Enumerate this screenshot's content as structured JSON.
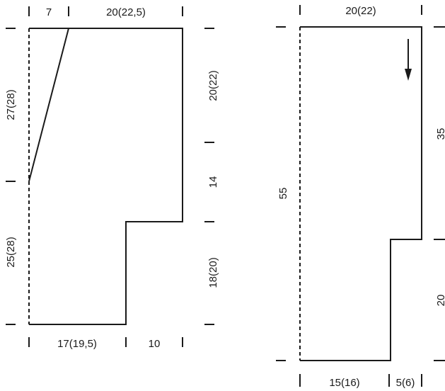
{
  "left_piece": {
    "top_left": "7",
    "top_right": "20(22,5)",
    "left_upper": "27(28)",
    "left_lower": "25(28)",
    "right_upper": "20(22)",
    "right_middle": "14",
    "right_lower": "18(20)",
    "bottom_left": "17(19,5)",
    "bottom_right": "10"
  },
  "right_piece": {
    "top": "20(22)",
    "left": "55",
    "right_upper": "35",
    "right_lower": "20",
    "bottom_left": "15(16)",
    "bottom_right": "5(6)"
  },
  "colors": {
    "line": "#1a1a1a",
    "background": "#ffffff"
  }
}
